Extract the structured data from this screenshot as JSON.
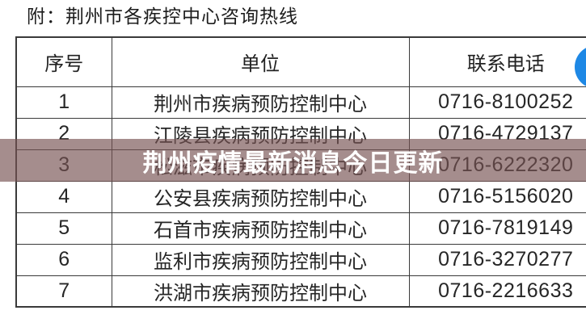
{
  "page": {
    "title": "附：荆州市各疾控中心咨询热线"
  },
  "banner": {
    "text": "荆州疫情最新消息今日更新",
    "bg_color": "rgba(118, 82, 82, 0.66)",
    "text_color": "#ffffff"
  },
  "icons": {
    "fab_circle_color": "#1E88E5"
  },
  "table": {
    "headers": [
      "序号",
      "单位",
      "联系电话"
    ],
    "rows": [
      {
        "no": "1",
        "unit": "荆州市疾病预防控制中心",
        "phone": "0716-8100252"
      },
      {
        "no": "2",
        "unit": "江陵县疾病预防控制中心",
        "phone": "0716-4729137"
      },
      {
        "no": "3",
        "unit": "松滋市疾病预防控制中心",
        "phone": "0716-6222320"
      },
      {
        "no": "4",
        "unit": "公安县疾病预防控制中心",
        "phone": "0716-5156020"
      },
      {
        "no": "5",
        "unit": "石首市疾病预防控制中心",
        "phone": "0716-7819149"
      },
      {
        "no": "6",
        "unit": "监利市疾病预防控制中心",
        "phone": "0716-3270277"
      },
      {
        "no": "7",
        "unit": "洪湖市疾病预防控制中心",
        "phone": "0716-2216633"
      }
    ]
  }
}
